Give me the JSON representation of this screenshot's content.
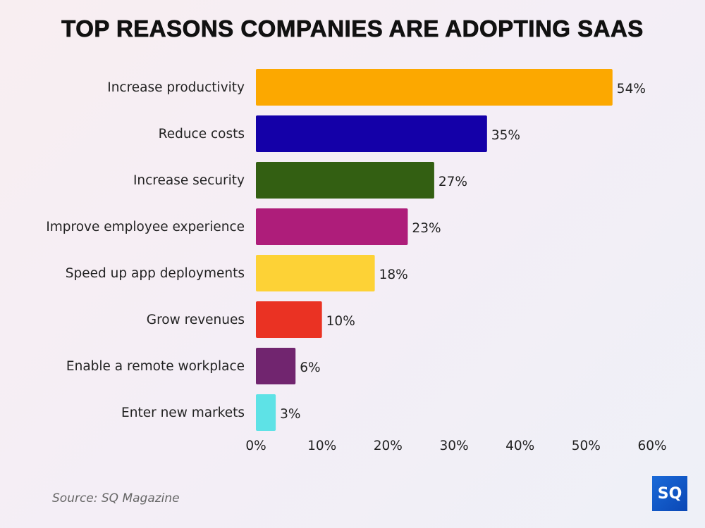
{
  "chart_data": {
    "type": "bar",
    "orientation": "horizontal",
    "title": "TOP REASONS COMPANIES ARE ADOPTING SAAS",
    "categories": [
      "Increase productivity",
      "Reduce costs",
      "Increase security",
      "Improve employee experience",
      "Speed up app deployments",
      "Grow revenues",
      "Enable a remote workplace",
      "Enter new markets"
    ],
    "values": [
      54,
      35,
      27,
      23,
      18,
      10,
      6,
      3
    ],
    "data_labels": [
      "54%",
      "35%",
      "27%",
      "23%",
      "18%",
      "10%",
      "6%",
      "3%"
    ],
    "colors": [
      "#fca800",
      "#1400a8",
      "#335f12",
      "#ae1d7a",
      "#fdd236",
      "#ea3223",
      "#71256f",
      "#5ee2e6"
    ],
    "xlim": [
      0,
      60
    ],
    "xticks": [
      "0%",
      "10%",
      "20%",
      "30%",
      "40%",
      "50%",
      "60%"
    ],
    "grid": false,
    "xlabel": "",
    "ylabel": ""
  },
  "source": "Source: SQ Magazine",
  "logo": "SQ"
}
